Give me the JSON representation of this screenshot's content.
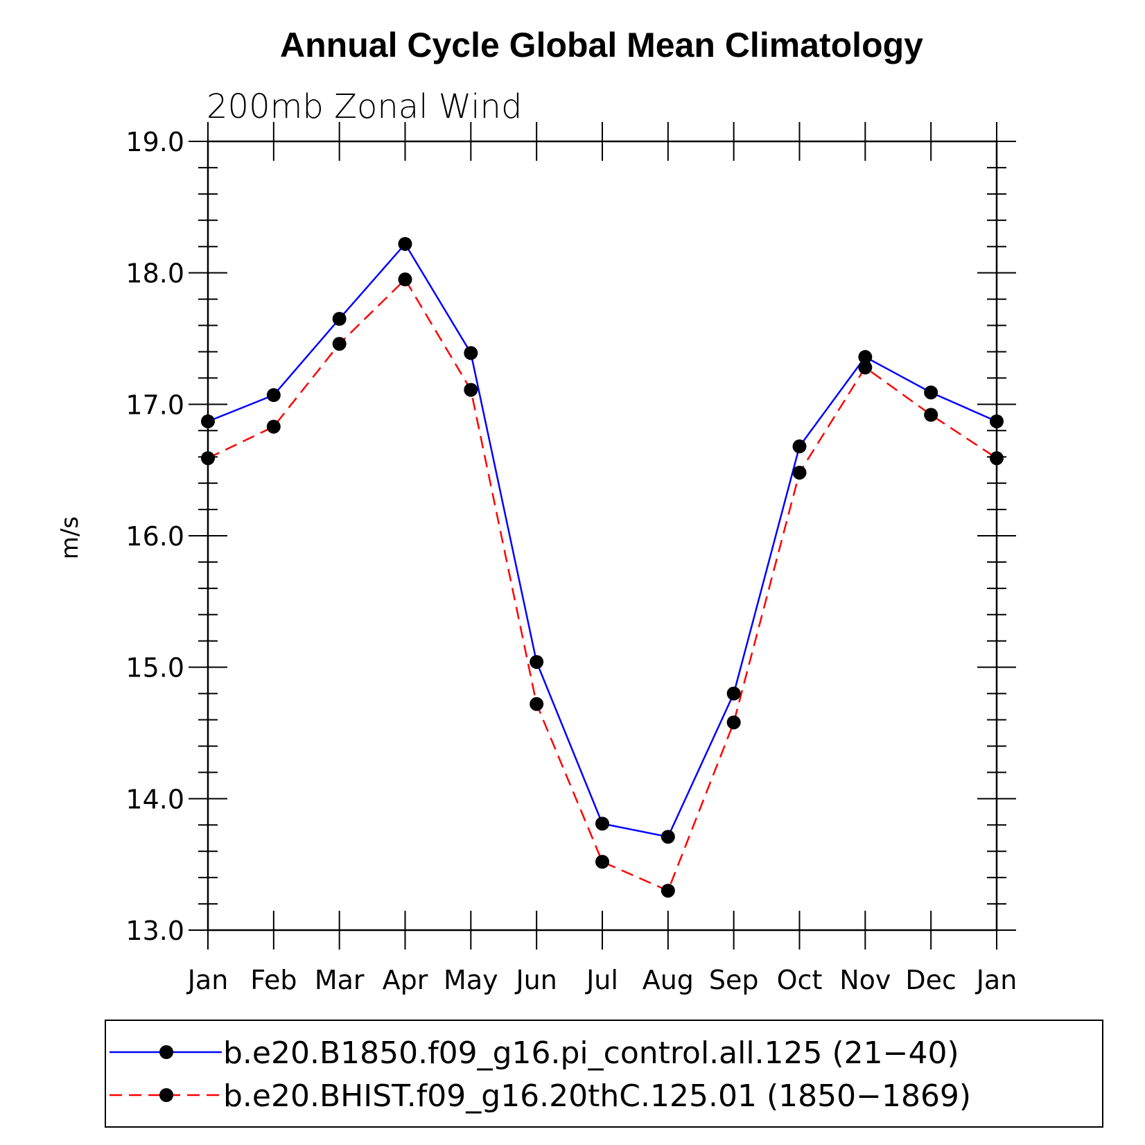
{
  "chart_data": {
    "type": "line",
    "title": "Annual Cycle Global Mean Climatology",
    "subtitle": "200mb Zonal Wind",
    "xlabel": "",
    "ylabel": "m/s",
    "categories": [
      "Jan",
      "Feb",
      "Mar",
      "Apr",
      "May",
      "Jun",
      "Jul",
      "Aug",
      "Sep",
      "Oct",
      "Nov",
      "Dec",
      "Jan"
    ],
    "ylim": [
      13.0,
      19.0
    ],
    "yticks": [
      "13.0",
      "14.0",
      "15.0",
      "16.0",
      "17.0",
      "18.0",
      "19.0"
    ],
    "series": [
      {
        "name": "b.e20.B1850.f09_g16.pi_control.all.125 (21−40)",
        "color": "#0000ff",
        "dash": "solid",
        "marker": "dot",
        "values": [
          16.87,
          17.07,
          17.65,
          18.22,
          17.39,
          15.04,
          13.81,
          13.71,
          14.8,
          16.68,
          17.36,
          17.09,
          16.87
        ]
      },
      {
        "name": "b.e20.BHIST.f09_g16.20thC.125.01 (1850−1869)",
        "color": "#ff0000",
        "dash": "dashed",
        "marker": "dot",
        "values": [
          16.59,
          16.83,
          17.46,
          17.95,
          17.11,
          14.72,
          13.52,
          13.3,
          14.58,
          16.48,
          17.28,
          16.92,
          16.59
        ]
      }
    ],
    "legend_position": "bottom"
  }
}
